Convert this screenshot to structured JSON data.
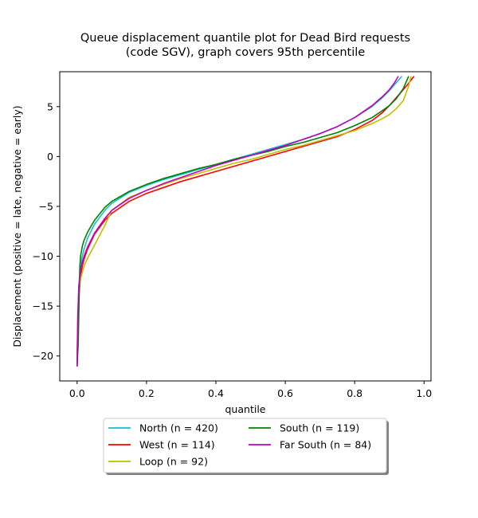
{
  "chart_data": {
    "type": "line",
    "title": "Queue displacement quantile plot for Dead Bird  requests",
    "subtitle": "(code SGV), graph covers 95th percentile",
    "xlabel": "quantile",
    "ylabel": "Displacement (positive = late, negative = early)",
    "xlim": [
      -0.05,
      1.02
    ],
    "ylim": [
      -22.5,
      8.5
    ],
    "xticks": [
      0.0,
      0.2,
      0.4,
      0.6,
      0.8,
      1.0
    ],
    "xtick_labels": [
      "0.0",
      "0.2",
      "0.4",
      "0.6",
      "0.8",
      "1.0"
    ],
    "yticks": [
      -20,
      -15,
      -10,
      -5,
      0,
      5
    ],
    "ytick_labels": [
      "−20",
      "−15",
      "−10",
      "−5",
      "0",
      "5"
    ],
    "grid": false,
    "legend_placement": "below",
    "series": [
      {
        "name": "North (n = 420)",
        "color": "#17becf",
        "x": [
          0.0,
          0.002,
          0.005,
          0.01,
          0.015,
          0.02,
          0.03,
          0.05,
          0.08,
          0.1,
          0.15,
          0.2,
          0.25,
          0.3,
          0.35,
          0.4,
          0.45,
          0.5,
          0.55,
          0.6,
          0.65,
          0.7,
          0.75,
          0.8,
          0.85,
          0.88,
          0.9,
          0.92,
          0.935
        ],
        "y": [
          -21,
          -17,
          -13,
          -11,
          -10,
          -9.3,
          -8.2,
          -6.8,
          -5.4,
          -4.7,
          -3.6,
          -2.9,
          -2.3,
          -1.8,
          -1.3,
          -0.8,
          -0.3,
          0.2,
          0.7,
          1.2,
          1.7,
          2.3,
          3.0,
          3.9,
          5.0,
          5.9,
          6.6,
          7.4,
          8.0
        ]
      },
      {
        "name": "West (n = 114)",
        "color": "#ff0000",
        "x": [
          0.0,
          0.002,
          0.005,
          0.01,
          0.015,
          0.02,
          0.03,
          0.05,
          0.08,
          0.1,
          0.15,
          0.2,
          0.25,
          0.3,
          0.35,
          0.4,
          0.45,
          0.5,
          0.55,
          0.6,
          0.65,
          0.7,
          0.75,
          0.8,
          0.85,
          0.88,
          0.9,
          0.93,
          0.95,
          0.97
        ],
        "y": [
          -21,
          -17,
          -14,
          -12,
          -11,
          -10.3,
          -9.3,
          -7.8,
          -6.4,
          -5.7,
          -4.5,
          -3.7,
          -3.1,
          -2.5,
          -2.0,
          -1.5,
          -1.0,
          -0.5,
          0.0,
          0.5,
          1.0,
          1.5,
          2.0,
          2.7,
          3.6,
          4.4,
          5.1,
          6.3,
          7.1,
          8.0
        ]
      },
      {
        "name": "Loop (n = 92)",
        "color": "#bfbf00",
        "x": [
          0.0,
          0.002,
          0.005,
          0.01,
          0.015,
          0.02,
          0.03,
          0.05,
          0.08,
          0.1,
          0.15,
          0.2,
          0.25,
          0.3,
          0.35,
          0.4,
          0.45,
          0.5,
          0.55,
          0.6,
          0.65,
          0.7,
          0.75,
          0.8,
          0.85,
          0.88,
          0.9,
          0.92,
          0.94,
          0.955,
          0.962
        ],
        "y": [
          -21,
          -16,
          -13.5,
          -12.3,
          -11.6,
          -11,
          -10.2,
          -8.9,
          -6.9,
          -5.4,
          -4.1,
          -3.4,
          -2.8,
          -2.2,
          -1.7,
          -1.2,
          -0.7,
          -0.3,
          0.2,
          0.7,
          1.1,
          1.6,
          2.1,
          2.6,
          3.3,
          3.8,
          4.2,
          4.8,
          5.6,
          7.0,
          8.0
        ]
      },
      {
        "name": "South (n = 119)",
        "color": "#008000",
        "x": [
          0.0,
          0.003,
          0.006,
          0.008,
          0.01,
          0.015,
          0.02,
          0.03,
          0.05,
          0.08,
          0.1,
          0.15,
          0.2,
          0.25,
          0.3,
          0.35,
          0.4,
          0.45,
          0.5,
          0.55,
          0.6,
          0.65,
          0.7,
          0.75,
          0.8,
          0.85,
          0.88,
          0.9,
          0.92,
          0.94,
          0.955
        ],
        "y": [
          -21,
          -19,
          -14,
          -11,
          -10,
          -9.0,
          -8.4,
          -7.6,
          -6.4,
          -5.1,
          -4.5,
          -3.5,
          -2.8,
          -2.2,
          -1.7,
          -1.2,
          -0.8,
          -0.3,
          0.1,
          0.5,
          1.0,
          1.4,
          1.9,
          2.4,
          3.1,
          3.9,
          4.6,
          5.1,
          5.8,
          6.8,
          8.0
        ]
      },
      {
        "name": "Far South (n = 84)",
        "color": "#bf00bf",
        "x": [
          0.0,
          0.002,
          0.005,
          0.01,
          0.015,
          0.02,
          0.03,
          0.05,
          0.08,
          0.1,
          0.15,
          0.2,
          0.25,
          0.3,
          0.35,
          0.4,
          0.45,
          0.5,
          0.55,
          0.6,
          0.65,
          0.7,
          0.75,
          0.8,
          0.85,
          0.88,
          0.9,
          0.915,
          0.925
        ],
        "y": [
          -21,
          -16,
          -13,
          -11.5,
          -10.6,
          -10,
          -9.1,
          -7.7,
          -6.2,
          -5.4,
          -4.2,
          -3.4,
          -2.7,
          -2.1,
          -1.5,
          -0.9,
          -0.4,
          0.1,
          0.6,
          1.1,
          1.7,
          2.3,
          3.0,
          3.9,
          5.1,
          6.0,
          6.7,
          7.4,
          8.0
        ]
      }
    ]
  }
}
